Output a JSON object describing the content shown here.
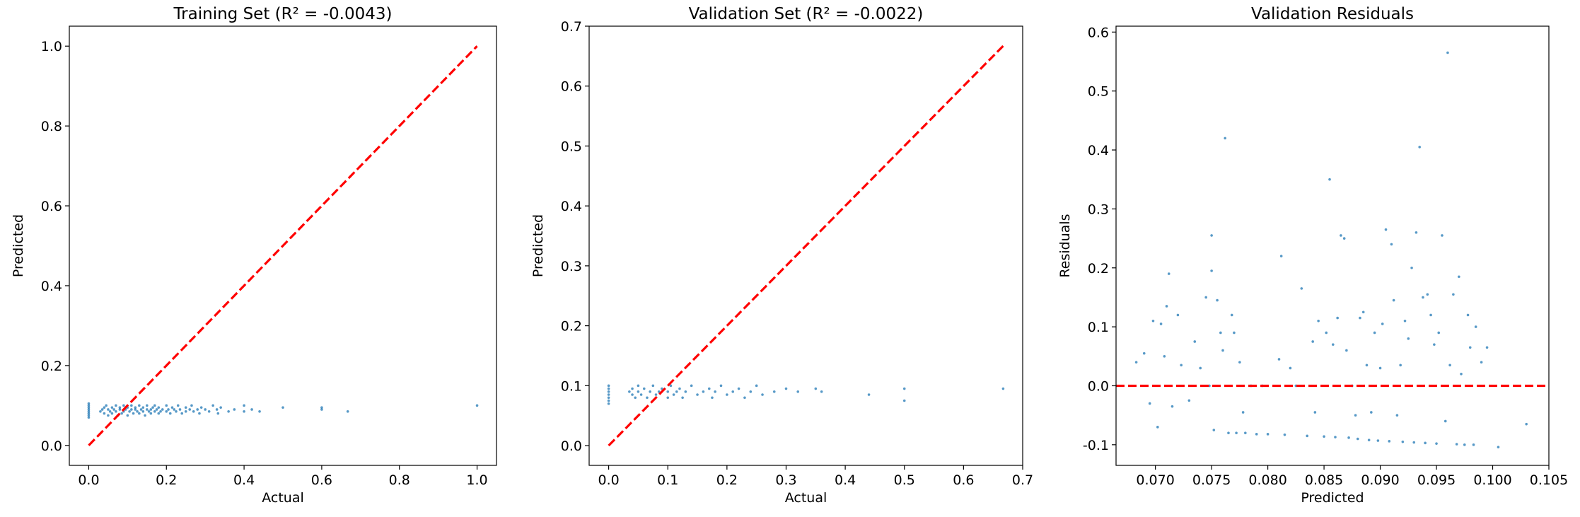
{
  "chart_data": [
    {
      "type": "scatter",
      "title": "Training Set (R² = -0.0043)",
      "xlabel": "Actual",
      "ylabel": "Predicted",
      "xlim": [
        -0.05,
        1.05
      ],
      "ylim": [
        -0.05,
        1.05
      ],
      "xticks": [
        0.0,
        0.2,
        0.4,
        0.6,
        0.8,
        1.0
      ],
      "yticks": [
        0.0,
        0.2,
        0.4,
        0.6,
        0.8,
        1.0
      ],
      "tick_decimals": 1,
      "marker_color": "#1f77b4",
      "reference_line": {
        "from": [
          0,
          0
        ],
        "to": [
          1,
          1
        ],
        "color": "#ff0000",
        "style": "dashed"
      },
      "points": [
        [
          0.0,
          0.075
        ],
        [
          0.0,
          0.08
        ],
        [
          0.0,
          0.085
        ],
        [
          0.0,
          0.09
        ],
        [
          0.0,
          0.095
        ],
        [
          0.0,
          0.1
        ],
        [
          0.0,
          0.105
        ],
        [
          0.0,
          0.07
        ],
        [
          0.03,
          0.085
        ],
        [
          0.035,
          0.09
        ],
        [
          0.04,
          0.095
        ],
        [
          0.04,
          0.08
        ],
        [
          0.045,
          0.1
        ],
        [
          0.05,
          0.075
        ],
        [
          0.05,
          0.09
        ],
        [
          0.055,
          0.085
        ],
        [
          0.06,
          0.095
        ],
        [
          0.06,
          0.08
        ],
        [
          0.065,
          0.09
        ],
        [
          0.07,
          0.1
        ],
        [
          0.07,
          0.085
        ],
        [
          0.075,
          0.075
        ],
        [
          0.08,
          0.09
        ],
        [
          0.08,
          0.095
        ],
        [
          0.085,
          0.08
        ],
        [
          0.09,
          0.1
        ],
        [
          0.09,
          0.085
        ],
        [
          0.095,
          0.09
        ],
        [
          0.1,
          0.075
        ],
        [
          0.1,
          0.095
        ],
        [
          0.105,
          0.085
        ],
        [
          0.11,
          0.09
        ],
        [
          0.11,
          0.1
        ],
        [
          0.115,
          0.08
        ],
        [
          0.12,
          0.09
        ],
        [
          0.12,
          0.095
        ],
        [
          0.125,
          0.085
        ],
        [
          0.13,
          0.1
        ],
        [
          0.13,
          0.08
        ],
        [
          0.135,
          0.09
        ],
        [
          0.14,
          0.095
        ],
        [
          0.14,
          0.085
        ],
        [
          0.145,
          0.075
        ],
        [
          0.15,
          0.09
        ],
        [
          0.15,
          0.1
        ],
        [
          0.155,
          0.085
        ],
        [
          0.16,
          0.09
        ],
        [
          0.16,
          0.08
        ],
        [
          0.165,
          0.095
        ],
        [
          0.17,
          0.085
        ],
        [
          0.17,
          0.1
        ],
        [
          0.175,
          0.09
        ],
        [
          0.18,
          0.08
        ],
        [
          0.18,
          0.095
        ],
        [
          0.185,
          0.085
        ],
        [
          0.19,
          0.09
        ],
        [
          0.2,
          0.1
        ],
        [
          0.2,
          0.085
        ],
        [
          0.205,
          0.09
        ],
        [
          0.21,
          0.08
        ],
        [
          0.215,
          0.095
        ],
        [
          0.22,
          0.09
        ],
        [
          0.225,
          0.085
        ],
        [
          0.23,
          0.1
        ],
        [
          0.235,
          0.09
        ],
        [
          0.24,
          0.08
        ],
        [
          0.25,
          0.095
        ],
        [
          0.25,
          0.085
        ],
        [
          0.26,
          0.09
        ],
        [
          0.265,
          0.1
        ],
        [
          0.27,
          0.085
        ],
        [
          0.28,
          0.09
        ],
        [
          0.285,
          0.08
        ],
        [
          0.29,
          0.095
        ],
        [
          0.3,
          0.09
        ],
        [
          0.31,
          0.085
        ],
        [
          0.32,
          0.1
        ],
        [
          0.33,
          0.09
        ],
        [
          0.333,
          0.08
        ],
        [
          0.34,
          0.095
        ],
        [
          0.36,
          0.085
        ],
        [
          0.375,
          0.09
        ],
        [
          0.4,
          0.1
        ],
        [
          0.4,
          0.085
        ],
        [
          0.42,
          0.09
        ],
        [
          0.44,
          0.085
        ],
        [
          0.5,
          0.095
        ],
        [
          0.6,
          0.095
        ],
        [
          0.6,
          0.09
        ],
        [
          0.667,
          0.085
        ],
        [
          1.0,
          0.1
        ]
      ]
    },
    {
      "type": "scatter",
      "title": "Validation Set (R² = -0.0022)",
      "xlabel": "Actual",
      "ylabel": "Predicted",
      "xlim": [
        -0.033,
        0.7
      ],
      "ylim": [
        -0.033,
        0.7
      ],
      "xticks": [
        0.0,
        0.1,
        0.2,
        0.3,
        0.4,
        0.5,
        0.6,
        0.7
      ],
      "yticks": [
        0.0,
        0.1,
        0.2,
        0.3,
        0.4,
        0.5,
        0.6,
        0.7
      ],
      "tick_decimals": 1,
      "marker_color": "#1f77b4",
      "reference_line": {
        "from": [
          0,
          0
        ],
        "to": [
          0.667,
          0.667
        ],
        "color": "#ff0000",
        "style": "dashed"
      },
      "points": [
        [
          0.0,
          0.075
        ],
        [
          0.0,
          0.08
        ],
        [
          0.0,
          0.085
        ],
        [
          0.0,
          0.09
        ],
        [
          0.0,
          0.095
        ],
        [
          0.0,
          0.1
        ],
        [
          0.0,
          0.07
        ],
        [
          0.035,
          0.09
        ],
        [
          0.04,
          0.085
        ],
        [
          0.04,
          0.095
        ],
        [
          0.045,
          0.08
        ],
        [
          0.05,
          0.1
        ],
        [
          0.05,
          0.09
        ],
        [
          0.055,
          0.085
        ],
        [
          0.06,
          0.095
        ],
        [
          0.065,
          0.08
        ],
        [
          0.07,
          0.09
        ],
        [
          0.075,
          0.1
        ],
        [
          0.08,
          0.085
        ],
        [
          0.085,
          0.09
        ],
        [
          0.09,
          0.095
        ],
        [
          0.1,
          0.08
        ],
        [
          0.1,
          0.09
        ],
        [
          0.105,
          0.1
        ],
        [
          0.11,
          0.085
        ],
        [
          0.115,
          0.09
        ],
        [
          0.12,
          0.095
        ],
        [
          0.125,
          0.08
        ],
        [
          0.13,
          0.09
        ],
        [
          0.14,
          0.1
        ],
        [
          0.15,
          0.085
        ],
        [
          0.16,
          0.09
        ],
        [
          0.17,
          0.095
        ],
        [
          0.175,
          0.08
        ],
        [
          0.18,
          0.09
        ],
        [
          0.19,
          0.1
        ],
        [
          0.2,
          0.085
        ],
        [
          0.21,
          0.09
        ],
        [
          0.22,
          0.095
        ],
        [
          0.23,
          0.08
        ],
        [
          0.24,
          0.09
        ],
        [
          0.25,
          0.1
        ],
        [
          0.26,
          0.085
        ],
        [
          0.28,
          0.09
        ],
        [
          0.3,
          0.095
        ],
        [
          0.32,
          0.09
        ],
        [
          0.35,
          0.095
        ],
        [
          0.36,
          0.09
        ],
        [
          0.44,
          0.085
        ],
        [
          0.5,
          0.095
        ],
        [
          0.5,
          0.075
        ],
        [
          0.667,
          0.095
        ]
      ]
    },
    {
      "type": "scatter",
      "title": "Validation Residuals",
      "xlabel": "Predicted",
      "ylabel": "Residuals",
      "xlim": [
        0.0665,
        0.105
      ],
      "ylim": [
        -0.135,
        0.61
      ],
      "xticks": [
        0.07,
        0.075,
        0.08,
        0.085,
        0.09,
        0.095,
        0.1,
        0.105
      ],
      "yticks": [
        -0.1,
        0.0,
        0.1,
        0.2,
        0.3,
        0.4,
        0.5,
        0.6
      ],
      "xtick_decimals": 3,
      "ytick_decimals": 1,
      "marker_color": "#1f77b4",
      "reference_line": {
        "y": 0.0,
        "color": "#ff0000",
        "style": "dashed"
      },
      "points": [
        [
          0.0683,
          0.04
        ],
        [
          0.069,
          0.055
        ],
        [
          0.0695,
          -0.03
        ],
        [
          0.0698,
          0.11
        ],
        [
          0.0702,
          -0.07
        ],
        [
          0.0705,
          0.105
        ],
        [
          0.0708,
          0.05
        ],
        [
          0.071,
          0.135
        ],
        [
          0.0712,
          0.19
        ],
        [
          0.0715,
          -0.035
        ],
        [
          0.072,
          0.12
        ],
        [
          0.0723,
          0.035
        ],
        [
          0.073,
          -0.025
        ],
        [
          0.0735,
          0.075
        ],
        [
          0.074,
          0.03
        ],
        [
          0.0745,
          0.15
        ],
        [
          0.0748,
          0.0
        ],
        [
          0.075,
          0.255
        ],
        [
          0.075,
          0.195
        ],
        [
          0.0752,
          -0.075
        ],
        [
          0.0755,
          0.145
        ],
        [
          0.0758,
          0.09
        ],
        [
          0.076,
          0.06
        ],
        [
          0.0762,
          0.42
        ],
        [
          0.0765,
          -0.08
        ],
        [
          0.0768,
          0.12
        ],
        [
          0.077,
          0.09
        ],
        [
          0.0772,
          -0.08
        ],
        [
          0.0775,
          0.04
        ],
        [
          0.0778,
          -0.045
        ],
        [
          0.078,
          -0.08
        ],
        [
          0.0785,
          0.0
        ],
        [
          0.079,
          -0.082
        ],
        [
          0.0795,
          0.0
        ],
        [
          0.08,
          -0.082
        ],
        [
          0.081,
          0.045
        ],
        [
          0.0812,
          0.22
        ],
        [
          0.0815,
          -0.083
        ],
        [
          0.082,
          0.03
        ],
        [
          0.0825,
          0.0
        ],
        [
          0.083,
          0.165
        ],
        [
          0.0835,
          -0.085
        ],
        [
          0.084,
          0.075
        ],
        [
          0.0842,
          -0.045
        ],
        [
          0.0845,
          0.11
        ],
        [
          0.085,
          -0.086
        ],
        [
          0.0852,
          0.09
        ],
        [
          0.0855,
          0.35
        ],
        [
          0.0858,
          0.07
        ],
        [
          0.086,
          -0.087
        ],
        [
          0.0862,
          0.115
        ],
        [
          0.0865,
          0.255
        ],
        [
          0.0868,
          0.25
        ],
        [
          0.087,
          0.06
        ],
        [
          0.0872,
          -0.088
        ],
        [
          0.0875,
          0.0
        ],
        [
          0.0878,
          -0.05
        ],
        [
          0.088,
          -0.09
        ],
        [
          0.0882,
          0.115
        ],
        [
          0.0885,
          0.125
        ],
        [
          0.0888,
          0.035
        ],
        [
          0.089,
          -0.092
        ],
        [
          0.0892,
          -0.045
        ],
        [
          0.0895,
          0.09
        ],
        [
          0.0898,
          -0.093
        ],
        [
          0.09,
          0.03
        ],
        [
          0.0902,
          0.105
        ],
        [
          0.0905,
          0.265
        ],
        [
          0.0908,
          -0.094
        ],
        [
          0.091,
          0.24
        ],
        [
          0.0912,
          0.145
        ],
        [
          0.0915,
          -0.05
        ],
        [
          0.0918,
          0.035
        ],
        [
          0.092,
          -0.095
        ],
        [
          0.0922,
          0.11
        ],
        [
          0.0925,
          0.08
        ],
        [
          0.0928,
          0.2
        ],
        [
          0.093,
          -0.096
        ],
        [
          0.0932,
          0.26
        ],
        [
          0.0935,
          0.405
        ],
        [
          0.0938,
          0.15
        ],
        [
          0.094,
          -0.097
        ],
        [
          0.0942,
          0.155
        ],
        [
          0.0945,
          0.12
        ],
        [
          0.0948,
          0.07
        ],
        [
          0.095,
          -0.098
        ],
        [
          0.0952,
          0.09
        ],
        [
          0.0955,
          0.255
        ],
        [
          0.0958,
          -0.06
        ],
        [
          0.096,
          0.565
        ],
        [
          0.0962,
          0.035
        ],
        [
          0.0965,
          0.155
        ],
        [
          0.0968,
          -0.099
        ],
        [
          0.097,
          0.185
        ],
        [
          0.0972,
          0.02
        ],
        [
          0.0975,
          -0.1
        ],
        [
          0.0978,
          0.12
        ],
        [
          0.098,
          0.065
        ],
        [
          0.0983,
          -0.1
        ],
        [
          0.0985,
          0.1
        ],
        [
          0.099,
          0.04
        ],
        [
          0.0995,
          0.065
        ],
        [
          0.1005,
          -0.104
        ],
        [
          0.103,
          -0.065
        ]
      ]
    }
  ]
}
